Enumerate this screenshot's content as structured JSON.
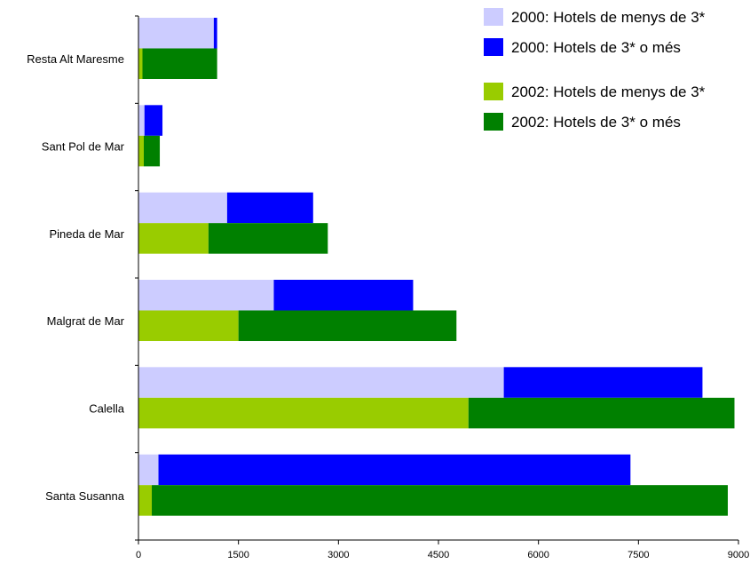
{
  "chart_data": {
    "type": "bar",
    "orientation": "horizontal",
    "stacked": true,
    "categories": [
      "Resta Alt Maresme",
      "Sant Pol de Mar",
      "Pineda de Mar",
      "Malgrat de Mar",
      "Calella",
      "Santa Susanna"
    ],
    "groups": [
      {
        "year": "2000",
        "series": [
          {
            "name": "2000: Hotels de menys de 3*",
            "color": "#ccccff",
            "values": [
              1130,
              90,
              1330,
              2030,
              5480,
              300
            ]
          },
          {
            "name": "2000: Hotels de 3* o més",
            "color": "#0000ff",
            "values": [
              50,
              270,
              1290,
              2090,
              2980,
              7080
            ]
          }
        ]
      },
      {
        "year": "2002",
        "series": [
          {
            "name": "2002: Hotels de menys de 3*",
            "color": "#99cc00",
            "values": [
              60,
              80,
              1050,
              1500,
              4950,
              200
            ]
          },
          {
            "name": "2002: Hotels de 3* o més",
            "color": "#008000",
            "values": [
              1120,
              240,
              1790,
              3270,
              3990,
              8640
            ]
          }
        ]
      }
    ],
    "xlim": [
      0,
      9000
    ],
    "xticks": [
      "0",
      "1500",
      "3000",
      "4500",
      "6000",
      "7500",
      "9000"
    ],
    "legend_position": "top-right",
    "grid": false
  }
}
